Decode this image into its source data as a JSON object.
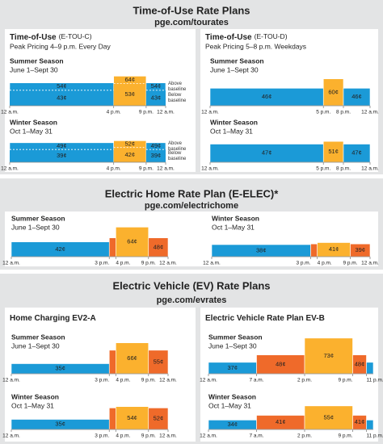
{
  "colors": {
    "off": "#1b9ad7",
    "partial": "#ef6a2a",
    "peak": "#fbb12e"
  },
  "ylim": [
    20,
    80
  ],
  "xlim": [
    0,
    24
  ],
  "sections": [
    {
      "title": "Time-of-Use Rate Plans",
      "url": "pge.com/tourates",
      "panels": [
        {
          "name": "Time-of-Use",
          "code": "(E-TOU-C)",
          "subtitle": "Peak Pricing 4–9 p.m. Every Day",
          "seasons": [
            {
              "title": "Summer Season",
              "dates": "June 1–Sept 30",
              "notes": [
                "Above baseline",
                "Below baseline"
              ],
              "xticks": [
                {
                  "value": 0,
                  "label": "12 a.m."
                },
                {
                  "value": 16,
                  "label": "4 p.m."
                },
                {
                  "value": 21,
                  "label": "9 p.m."
                },
                {
                  "value": 24,
                  "label": "12 a.m."
                }
              ],
              "segments": [
                {
                  "kind": "off",
                  "from": 0,
                  "to": 16,
                  "values": [
                    43,
                    54
                  ],
                  "labels": [
                    "43¢",
                    "54¢"
                  ]
                },
                {
                  "kind": "peak",
                  "from": 16,
                  "to": 21,
                  "values": [
                    53,
                    64
                  ],
                  "labels": [
                    "53¢",
                    "64¢"
                  ]
                },
                {
                  "kind": "off",
                  "from": 21,
                  "to": 24,
                  "values": [
                    43,
                    54
                  ],
                  "labels": [
                    "43¢",
                    "54¢"
                  ]
                }
              ]
            },
            {
              "title": "Winter Season",
              "dates": "Oct 1–May 31",
              "notes": [
                "Above baseline",
                "Below baseline"
              ],
              "xticks": [
                {
                  "value": 0,
                  "label": "12 a.m."
                },
                {
                  "value": 16,
                  "label": "4 p.m."
                },
                {
                  "value": 21,
                  "label": "9 p.m."
                },
                {
                  "value": 24,
                  "label": "12 a.m."
                }
              ],
              "segments": [
                {
                  "kind": "off",
                  "from": 0,
                  "to": 16,
                  "values": [
                    39,
                    49
                  ],
                  "labels": [
                    "39¢",
                    "49¢"
                  ]
                },
                {
                  "kind": "peak",
                  "from": 16,
                  "to": 21,
                  "values": [
                    42,
                    52
                  ],
                  "labels": [
                    "42¢",
                    "52¢"
                  ]
                },
                {
                  "kind": "off",
                  "from": 21,
                  "to": 24,
                  "values": [
                    39,
                    49
                  ],
                  "labels": [
                    "39¢",
                    "49¢"
                  ]
                }
              ]
            }
          ]
        },
        {
          "name": "Time-of-Use",
          "code": "(E-TOU-D)",
          "subtitle": "Peak Pricing 5–8 p.m. Weekdays",
          "seasons": [
            {
              "title": "Summer Season",
              "dates": "June 1–Sept 30",
              "xticks": [
                {
                  "value": 0,
                  "label": "12 a.m."
                },
                {
                  "value": 17,
                  "label": "5 p.m."
                },
                {
                  "value": 20,
                  "label": "8 p.m."
                },
                {
                  "value": 24,
                  "label": "12 a.m."
                }
              ],
              "segments": [
                {
                  "kind": "off",
                  "from": 0,
                  "to": 17,
                  "values": [
                    46
                  ],
                  "labels": [
                    "46¢"
                  ]
                },
                {
                  "kind": "peak",
                  "from": 17,
                  "to": 20,
                  "values": [
                    60
                  ],
                  "labels": [
                    "60¢"
                  ]
                },
                {
                  "kind": "off",
                  "from": 20,
                  "to": 24,
                  "values": [
                    46
                  ],
                  "labels": [
                    "46¢"
                  ]
                }
              ]
            },
            {
              "title": "Winter Season",
              "dates": "Oct 1–May 31",
              "xticks": [
                {
                  "value": 0,
                  "label": "12 a.m."
                },
                {
                  "value": 17,
                  "label": "5 p.m."
                },
                {
                  "value": 20,
                  "label": "8 p.m."
                },
                {
                  "value": 24,
                  "label": "12 a.m."
                }
              ],
              "segments": [
                {
                  "kind": "off",
                  "from": 0,
                  "to": 17,
                  "values": [
                    47
                  ],
                  "labels": [
                    "47¢"
                  ]
                },
                {
                  "kind": "peak",
                  "from": 17,
                  "to": 20,
                  "values": [
                    51
                  ],
                  "labels": [
                    "51¢"
                  ]
                },
                {
                  "kind": "off",
                  "from": 20,
                  "to": 24,
                  "values": [
                    47
                  ],
                  "labels": [
                    "47¢"
                  ]
                }
              ]
            }
          ]
        }
      ]
    },
    {
      "title": "Electric Home Rate Plan (E-ELEC)*",
      "url": "pge.com/electrichome",
      "panels": [
        {
          "seasons": [
            {
              "title": "Summer Season",
              "dates": "June 1–Sept 30",
              "xticks": [
                {
                  "value": 0,
                  "label": "12 a.m."
                },
                {
                  "value": 15,
                  "label": "3 p.m."
                },
                {
                  "value": 16,
                  "label": "4 p.m."
                },
                {
                  "value": 21,
                  "label": "9 p.m."
                },
                {
                  "value": 24,
                  "label": "12 a.m."
                }
              ],
              "segments": [
                {
                  "kind": "off",
                  "from": 0,
                  "to": 15,
                  "values": [
                    42
                  ],
                  "labels": [
                    "42¢"
                  ]
                },
                {
                  "kind": "partial",
                  "from": 15,
                  "to": 16,
                  "values": [
                    48
                  ]
                },
                {
                  "kind": "peak",
                  "from": 16,
                  "to": 21,
                  "values": [
                    64
                  ],
                  "labels": [
                    "64¢"
                  ]
                },
                {
                  "kind": "partial",
                  "from": 21,
                  "to": 24,
                  "values": [
                    48
                  ],
                  "labels": [
                    "48¢"
                  ]
                }
              ]
            },
            {
              "title": "Winter Season",
              "dates": "Oct 1–May 31",
              "xticks": [
                {
                  "value": 0,
                  "label": "12 a.m."
                },
                {
                  "value": 15,
                  "label": "3 p.m."
                },
                {
                  "value": 16,
                  "label": "4 p.m."
                },
                {
                  "value": 21,
                  "label": "9 p.m."
                },
                {
                  "value": 24,
                  "label": "12 a.m."
                }
              ],
              "segments": [
                {
                  "kind": "off",
                  "from": 0,
                  "to": 15,
                  "values": [
                    38
                  ],
                  "labels": [
                    "38¢"
                  ]
                },
                {
                  "kind": "partial",
                  "from": 15,
                  "to": 16,
                  "values": [
                    39
                  ]
                },
                {
                  "kind": "peak",
                  "from": 16,
                  "to": 21,
                  "values": [
                    41
                  ],
                  "labels": [
                    "41¢"
                  ]
                },
                {
                  "kind": "partial",
                  "from": 21,
                  "to": 24,
                  "values": [
                    39
                  ],
                  "labels": [
                    "39¢"
                  ]
                }
              ]
            }
          ]
        }
      ]
    },
    {
      "title": "Electric Vehicle (EV) Rate Plans",
      "url": "pge.com/evrates",
      "panels": [
        {
          "name": "Home Charging EV2-A",
          "seasons": [
            {
              "title": "Summer Season",
              "dates": "June 1–Sept 30",
              "xticks": [
                {
                  "value": 0,
                  "label": "12 a.m."
                },
                {
                  "value": 15,
                  "label": "3 p.m."
                },
                {
                  "value": 16,
                  "label": "4 p.m."
                },
                {
                  "value": 21,
                  "label": "9 p.m."
                },
                {
                  "value": 24,
                  "label": "12 a.m."
                }
              ],
              "segments": [
                {
                  "kind": "off",
                  "from": 0,
                  "to": 15,
                  "values": [
                    35
                  ],
                  "labels": [
                    "35¢"
                  ]
                },
                {
                  "kind": "partial",
                  "from": 15,
                  "to": 16,
                  "values": [
                    55
                  ]
                },
                {
                  "kind": "peak",
                  "from": 16,
                  "to": 21,
                  "values": [
                    66
                  ],
                  "labels": [
                    "66¢"
                  ]
                },
                {
                  "kind": "partial",
                  "from": 21,
                  "to": 24,
                  "values": [
                    55
                  ],
                  "labels": [
                    "55¢"
                  ]
                }
              ]
            },
            {
              "title": "Winter Season",
              "dates": "Oct 1–May 31",
              "xticks": [
                {
                  "value": 0,
                  "label": "12 a.m."
                },
                {
                  "value": 15,
                  "label": "3 p.m."
                },
                {
                  "value": 16,
                  "label": "4 p.m."
                },
                {
                  "value": 21,
                  "label": "9 p.m."
                },
                {
                  "value": 24,
                  "label": "12 a.m."
                }
              ],
              "segments": [
                {
                  "kind": "off",
                  "from": 0,
                  "to": 15,
                  "values": [
                    35
                  ],
                  "labels": [
                    "35¢"
                  ]
                },
                {
                  "kind": "partial",
                  "from": 15,
                  "to": 16,
                  "values": [
                    52
                  ]
                },
                {
                  "kind": "peak",
                  "from": 16,
                  "to": 21,
                  "values": [
                    54
                  ],
                  "labels": [
                    "54¢"
                  ]
                },
                {
                  "kind": "partial",
                  "from": 21,
                  "to": 24,
                  "values": [
                    52
                  ],
                  "labels": [
                    "52¢"
                  ]
                }
              ]
            }
          ]
        },
        {
          "name": "Electric Vehicle Rate Plan EV-B",
          "seasons": [
            {
              "title": "Summer Season",
              "dates": "June 1–Sept 30",
              "xticks": [
                {
                  "value": 0,
                  "label": "12 a.m."
                },
                {
                  "value": 7,
                  "label": "7 a.m."
                },
                {
                  "value": 14,
                  "label": "2 p.m."
                },
                {
                  "value": 21,
                  "label": "9 p.m."
                },
                {
                  "value": 23,
                  "label": "11 p.m."
                }
              ],
              "segments": [
                {
                  "kind": "off",
                  "from": 0,
                  "to": 7,
                  "values": [
                    37
                  ],
                  "labels": [
                    "37¢"
                  ]
                },
                {
                  "kind": "partial",
                  "from": 7,
                  "to": 14,
                  "values": [
                    48
                  ],
                  "labels": [
                    "48¢"
                  ]
                },
                {
                  "kind": "peak",
                  "from": 14,
                  "to": 21,
                  "values": [
                    73
                  ],
                  "labels": [
                    "73¢"
                  ]
                },
                {
                  "kind": "partial",
                  "from": 21,
                  "to": 23,
                  "values": [
                    48
                  ],
                  "labels": [
                    "48¢"
                  ]
                },
                {
                  "kind": "off",
                  "from": 23,
                  "to": 24,
                  "values": [
                    37
                  ]
                }
              ]
            },
            {
              "title": "Winter Season",
              "dates": "Oct 1–May 31",
              "xticks": [
                {
                  "value": 0,
                  "label": "12 a.m."
                },
                {
                  "value": 7,
                  "label": "7 a.m."
                },
                {
                  "value": 14,
                  "label": "2 p.m."
                },
                {
                  "value": 21,
                  "label": "9 p.m."
                },
                {
                  "value": 23,
                  "label": "11 p.m."
                }
              ],
              "segments": [
                {
                  "kind": "off",
                  "from": 0,
                  "to": 7,
                  "values": [
                    34
                  ],
                  "labels": [
                    "34¢"
                  ]
                },
                {
                  "kind": "partial",
                  "from": 7,
                  "to": 14,
                  "values": [
                    41
                  ],
                  "labels": [
                    "41¢"
                  ]
                },
                {
                  "kind": "peak",
                  "from": 14,
                  "to": 21,
                  "values": [
                    55
                  ],
                  "labels": [
                    "55¢"
                  ]
                },
                {
                  "kind": "partial",
                  "from": 21,
                  "to": 23,
                  "values": [
                    41
                  ],
                  "labels": [
                    "41¢"
                  ]
                },
                {
                  "kind": "off",
                  "from": 23,
                  "to": 24,
                  "values": [
                    34
                  ]
                }
              ]
            }
          ]
        }
      ]
    }
  ]
}
